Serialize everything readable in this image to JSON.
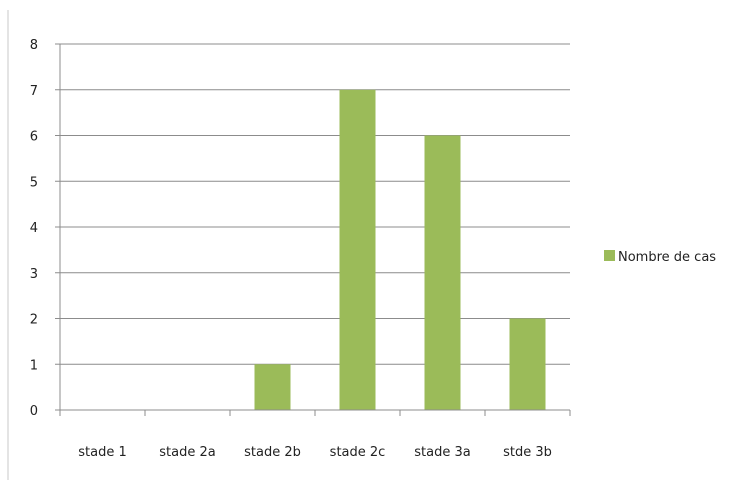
{
  "chart_data": {
    "type": "bar",
    "categories": [
      "stade 1",
      "stade 2a",
      "stade 2b",
      "stade 2c",
      "stade 3a",
      "stde 3b"
    ],
    "series": [
      {
        "name": "Nombre de cas",
        "values": [
          0,
          0,
          1,
          7,
          6,
          2
        ],
        "color": "#9bbb59"
      }
    ],
    "ylim": [
      0,
      8
    ],
    "yticks": [
      0,
      1,
      2,
      3,
      4,
      5,
      6,
      7,
      8
    ],
    "grid": true,
    "legend_position": "right"
  }
}
